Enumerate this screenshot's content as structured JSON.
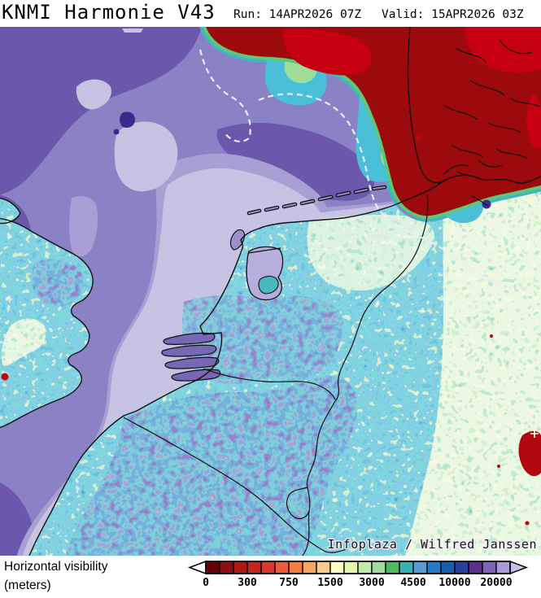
{
  "header": {
    "title": "KNMI Harmonie V43",
    "run": "Run: 14APR2026 07Z",
    "valid": "Valid: 15APR2026 03Z"
  },
  "map": {
    "attribution": "Infoplaza / Wilfred Janssen"
  },
  "legend": {
    "title_line1": "Horizontal visibility",
    "title_line2": "(meters)",
    "tick_labels": [
      "0",
      "300",
      "750",
      "1500",
      "3000",
      "4500",
      "10000",
      "20000"
    ],
    "cell_colors": [
      "#650009",
      "#8e0f12",
      "#ad1714",
      "#c52421",
      "#de352a",
      "#ee5a38",
      "#f47c42",
      "#f8a55f",
      "#fbca90",
      "#ffffc6",
      "#e6f7a9",
      "#c0ecaa",
      "#9edd9b",
      "#4fba5e",
      "#36b1b4",
      "#549cd3",
      "#2778c8",
      "#145fb2",
      "#27409e",
      "#5a2d8e",
      "#7d64b5",
      "#a99ad6"
    ],
    "left_arrow_color": "#ffffff",
    "right_arrow_color": "#c9c0e8",
    "border_color": "#000000",
    "ticks_every_n_cells": 3
  },
  "map_colors": {
    "sea_dark_purple": "#6b57ac",
    "sea_medium_purple": "#8b82c6",
    "sea_light_purple": "#a8a0d4",
    "sea_lavender": "#c7c4e3",
    "fog_dark_red": "#9c0a0e",
    "fog_bright_red": "#c60012",
    "fog_rim_green": "#5fc874",
    "fog_rim_teal": "#41b4c6",
    "land_teal": "#36b2b6",
    "land_blue": "#2e8ac8",
    "land_green": "#9edd9b",
    "land_pale_yellow": "#f6fcc4",
    "land_purple": "#5b2f90",
    "coastline": "#101010"
  }
}
